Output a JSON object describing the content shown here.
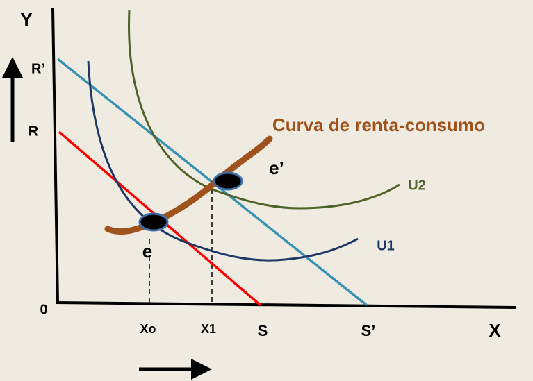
{
  "axes": {
    "y": "Y",
    "x": "X",
    "origin": "0"
  },
  "intercepts": {
    "r_prime": "R’",
    "r": "R",
    "s": "S",
    "s_prime": "S’"
  },
  "quantities": {
    "x0": "Xo",
    "x1": "X1"
  },
  "equilibria": {
    "e": "e",
    "e_prime": "e’"
  },
  "curves": {
    "u1": "U1",
    "u2": "U2",
    "income_consumption": "Curva de renta-consumo"
  }
}
